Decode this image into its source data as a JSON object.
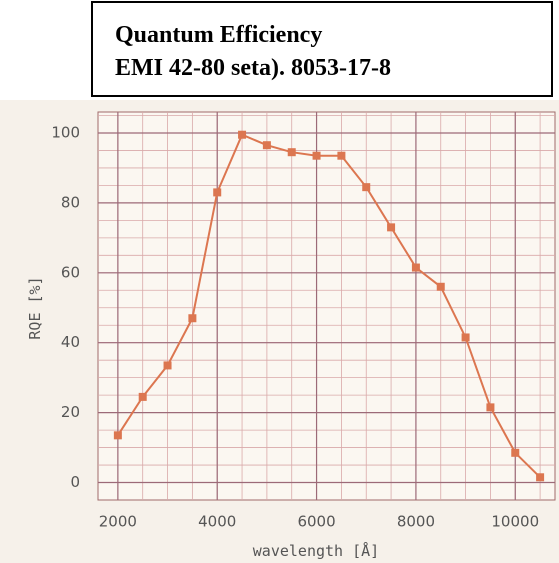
{
  "chart_data": {
    "type": "line",
    "title": [
      "Quantum Efficiency",
      "EMI 42-80 seta). 8053-17-8"
    ],
    "x_label": "wavelength [Å]",
    "y_label": "RQE [%]",
    "x": [
      2000,
      2500,
      3000,
      3500,
      4000,
      4500,
      5000,
      5500,
      6000,
      6500,
      7000,
      7500,
      8000,
      8500,
      9000,
      9500,
      10000,
      10500
    ],
    "series": [
      {
        "color": "#dc7650",
        "values": [
          13.5,
          24.5,
          33.5,
          47,
          83,
          99.5,
          96.5,
          94.5,
          93.5,
          93.5,
          84.5,
          73,
          61.5,
          56,
          41.5,
          21.5,
          8.5,
          1.5
        ]
      }
    ],
    "xlim": [
      1600,
      10800
    ],
    "ylim": [
      -5,
      106
    ],
    "xticks": [
      2000,
      4000,
      6000,
      8000,
      10000
    ],
    "yticks": [
      0,
      20,
      40,
      60,
      80,
      100
    ],
    "grid": true
  }
}
